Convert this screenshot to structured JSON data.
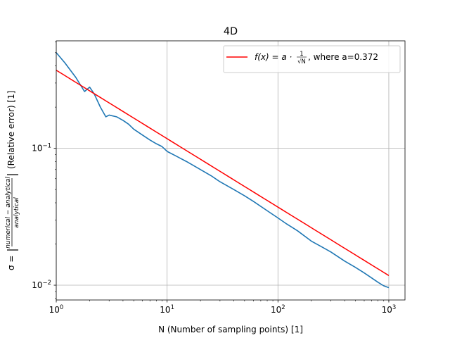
{
  "chart_data": {
    "type": "line",
    "title": "4D",
    "xlabel": "N (Number of sampling points) [1]",
    "ylabel_prefix": "σ = ",
    "ylabel_fraction_num": "numerical − analytical",
    "ylabel_fraction_den": "analytical",
    "ylabel_suffix": "(Relative error) [1]",
    "xscale": "log",
    "yscale": "log",
    "xlim": [
      1,
      1400
    ],
    "ylim": [
      0.0078,
      0.61
    ],
    "grid": true,
    "legend_position": "top-right",
    "x_ticks": [
      {
        "value": 1,
        "base": "10",
        "exp": "0"
      },
      {
        "value": 10,
        "base": "10",
        "exp": "1"
      },
      {
        "value": 100,
        "base": "10",
        "exp": "2"
      },
      {
        "value": 1000,
        "base": "10",
        "exp": "3"
      }
    ],
    "y_ticks": [
      {
        "value": 0.01,
        "base": "10",
        "exp": "−2"
      },
      {
        "value": 0.1,
        "base": "10",
        "exp": "−1"
      }
    ],
    "series": [
      {
        "name": "",
        "color": "#1f77b4",
        "x": [
          1,
          1.2,
          1.5,
          1.8,
          2.0,
          2.2,
          2.5,
          2.8,
          3.0,
          3.5,
          4.0,
          4.5,
          5,
          6,
          7,
          8,
          9,
          10,
          12,
          15,
          20,
          25,
          30,
          40,
          50,
          60,
          80,
          100,
          120,
          150,
          200,
          250,
          300,
          400,
          500,
          600,
          700,
          800,
          900,
          1000
        ],
        "y": [
          0.5,
          0.42,
          0.33,
          0.26,
          0.28,
          0.25,
          0.2,
          0.17,
          0.175,
          0.17,
          0.16,
          0.15,
          0.138,
          0.125,
          0.115,
          0.108,
          0.103,
          0.095,
          0.088,
          0.08,
          0.07,
          0.063,
          0.057,
          0.05,
          0.045,
          0.041,
          0.035,
          0.031,
          0.028,
          0.025,
          0.021,
          0.019,
          0.0175,
          0.015,
          0.0135,
          0.0123,
          0.0113,
          0.0105,
          0.0099,
          0.0096
        ]
      },
      {
        "name": "f(x) = a · 1/√N,   where a=0.372",
        "color": "#ff0000",
        "a": 0.372,
        "x_range": [
          1,
          1000
        ]
      }
    ],
    "legend": {
      "label_fx": "f(x) = a · ",
      "label_num": "1",
      "label_den": "√N",
      "label_tail": ",   where a=0.372"
    }
  }
}
